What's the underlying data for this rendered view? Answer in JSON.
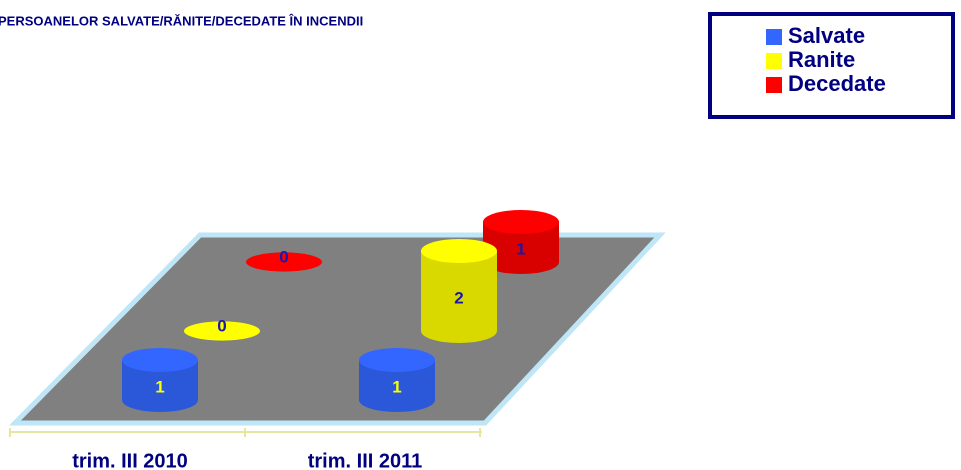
{
  "chart_data": {
    "type": "bar3d",
    "title": "PERSOANELOR SALVATE/RĂNITE/DECEDATE ÎN INCENDII",
    "categories": [
      "trim. III 2010",
      "trim. III 2011"
    ],
    "series": [
      {
        "name": "Salvate",
        "color": "#3366ff",
        "values": [
          1,
          1
        ]
      },
      {
        "name": "Ranite",
        "color": "#ffff00",
        "values": [
          0,
          2
        ]
      },
      {
        "name": "Decedate",
        "color": "#ff0000",
        "values": [
          0,
          1
        ]
      }
    ],
    "legend": "top-right"
  }
}
